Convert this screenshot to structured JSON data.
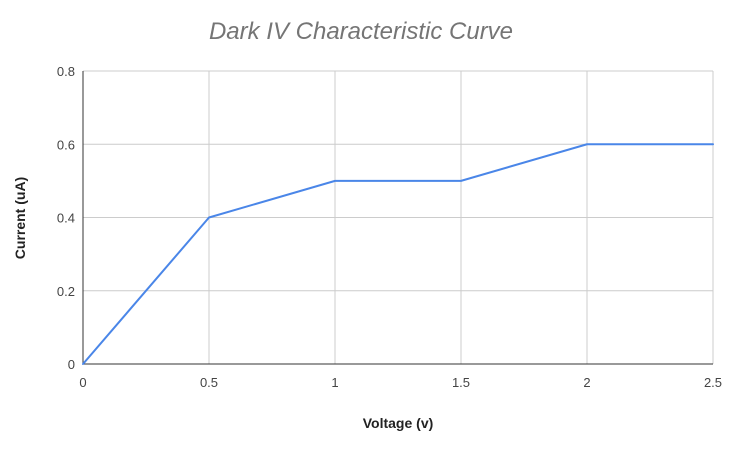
{
  "chart_data": {
    "type": "line",
    "title": "Dark IV Characteristic Curve",
    "xlabel": "Voltage (v)",
    "ylabel": "Current (uA)",
    "xlim": [
      0,
      2.5
    ],
    "ylim": [
      0,
      0.8
    ],
    "x_ticks": [
      0,
      0.5,
      1,
      1.5,
      2,
      2.5
    ],
    "y_ticks": [
      0,
      0.2,
      0.4,
      0.6,
      0.8
    ],
    "x_tick_labels": [
      "0",
      "0.5",
      "1",
      "1.5",
      "2",
      "2.5"
    ],
    "y_tick_labels": [
      "0",
      "0.2",
      "0.4",
      "0.6",
      "0.8"
    ],
    "grid": true,
    "legend": "none",
    "series": [
      {
        "color": "#4a86e8",
        "x": [
          0,
          0.5,
          1,
          1.5,
          2,
          2.5
        ],
        "y": [
          0,
          0.4,
          0.5,
          0.5,
          0.6,
          0.6
        ]
      }
    ]
  }
}
